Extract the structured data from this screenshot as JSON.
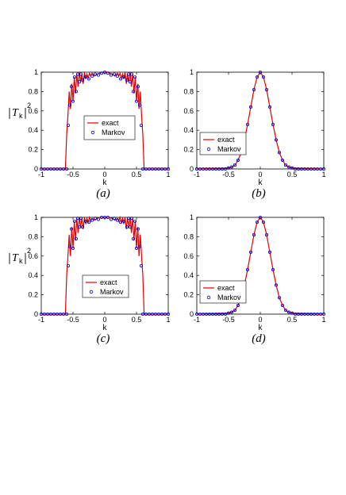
{
  "figure": {
    "captions": [
      "(a)",
      "(b)",
      "(c)",
      "(d)"
    ],
    "colors": {
      "exact": "#e00000",
      "markov": "#0000cc",
      "axis": "#000000"
    }
  },
  "chart_data": [
    {
      "type": "line",
      "panel": "(a)",
      "xlabel": "k",
      "ylabel": "|T_k|^2",
      "xlim": [
        -1,
        1
      ],
      "ylim": [
        0,
        1
      ],
      "xticks": [
        "-1",
        "-0.5",
        "0",
        "0.5",
        "1"
      ],
      "yticks": [
        "0",
        "0.2",
        "0.4",
        "0.6",
        "0.8",
        "1"
      ],
      "legend": {
        "position": "center",
        "entries": [
          "exact",
          "Markov"
        ]
      },
      "series": [
        {
          "name": "exact",
          "style": "line",
          "x": [
            -1,
            -0.62,
            -0.6,
            -0.58,
            -0.56,
            -0.54,
            -0.52,
            -0.5,
            -0.48,
            -0.46,
            -0.44,
            -0.42,
            -0.4,
            -0.38,
            -0.36,
            -0.34,
            -0.32,
            -0.3,
            -0.28,
            -0.26,
            -0.24,
            -0.22,
            -0.2,
            -0.16,
            -0.12,
            -0.08,
            -0.04,
            0,
            0.04,
            0.08,
            0.12,
            0.16,
            0.2,
            0.22,
            0.24,
            0.26,
            0.28,
            0.3,
            0.32,
            0.34,
            0.36,
            0.38,
            0.4,
            0.42,
            0.44,
            0.46,
            0.48,
            0.5,
            0.52,
            0.54,
            0.56,
            0.58,
            0.6,
            0.62,
            1
          ],
          "y": [
            0,
            0,
            0.35,
            0.55,
            0.8,
            0.62,
            0.88,
            0.7,
            0.95,
            0.78,
            0.98,
            0.85,
            1.0,
            0.9,
            0.98,
            0.88,
            1.0,
            0.93,
            0.98,
            0.94,
            0.99,
            0.96,
            0.99,
            0.96,
            0.98,
            0.99,
            1.0,
            1.0,
            1.0,
            0.99,
            0.98,
            0.96,
            0.99,
            0.96,
            0.99,
            0.94,
            0.98,
            0.93,
            1.0,
            0.88,
            0.98,
            0.9,
            1.0,
            0.85,
            0.98,
            0.78,
            0.95,
            0.7,
            0.88,
            0.62,
            0.8,
            0.55,
            0.35,
            0,
            0
          ]
        },
        {
          "name": "Markov",
          "style": "markers",
          "x": [
            -1,
            -0.95,
            -0.9,
            -0.85,
            -0.8,
            -0.75,
            -0.7,
            -0.65,
            -0.6,
            -0.575,
            -0.55,
            -0.525,
            -0.5,
            -0.475,
            -0.45,
            -0.425,
            -0.4,
            -0.375,
            -0.35,
            -0.3,
            -0.25,
            -0.2,
            -0.15,
            -0.1,
            -0.05,
            0,
            0.05,
            0.1,
            0.15,
            0.2,
            0.25,
            0.3,
            0.35,
            0.375,
            0.4,
            0.425,
            0.45,
            0.475,
            0.5,
            0.525,
            0.55,
            0.575,
            0.6,
            0.65,
            0.7,
            0.75,
            0.8,
            0.85,
            0.9,
            0.95,
            1
          ],
          "y": [
            0,
            0,
            0,
            0,
            0,
            0,
            0,
            0,
            0,
            0.45,
            0.66,
            0.85,
            0.7,
            0.95,
            0.8,
            0.98,
            0.9,
            0.98,
            0.92,
            0.95,
            0.93,
            0.96,
            0.98,
            0.97,
            0.99,
            1.0,
            0.99,
            0.97,
            0.98,
            0.96,
            0.93,
            0.95,
            0.92,
            0.98,
            0.9,
            0.98,
            0.8,
            0.95,
            0.7,
            0.85,
            0.66,
            0.45,
            0,
            0,
            0,
            0,
            0,
            0,
            0,
            0,
            0
          ]
        }
      ]
    },
    {
      "type": "line",
      "panel": "(b)",
      "xlabel": "k",
      "ylabel": "",
      "xlim": [
        -1,
        1
      ],
      "ylim": [
        0,
        1
      ],
      "xticks": [
        "-1",
        "-0.5",
        "0",
        "0.5",
        "1"
      ],
      "yticks": [
        "0",
        "0.2",
        "0.4",
        "0.6",
        "0.8",
        "1"
      ],
      "legend": {
        "position": "bottom-left",
        "entries": [
          "exact",
          "Markov"
        ]
      },
      "gaussian_width": 0.16,
      "series": [
        {
          "name": "exact",
          "style": "line",
          "x": [
            -1,
            -0.5,
            -0.45,
            -0.4,
            -0.35,
            -0.3,
            -0.25,
            -0.2,
            -0.15,
            -0.1,
            -0.05,
            0,
            0.05,
            0.1,
            0.15,
            0.2,
            0.25,
            0.3,
            0.35,
            0.4,
            0.45,
            0.5,
            1
          ],
          "y": [
            0,
            0.01,
            0.02,
            0.04,
            0.09,
            0.17,
            0.3,
            0.46,
            0.64,
            0.82,
            0.95,
            1.0,
            0.95,
            0.82,
            0.64,
            0.46,
            0.3,
            0.17,
            0.09,
            0.04,
            0.02,
            0.01,
            0
          ]
        },
        {
          "name": "Markov",
          "style": "markers",
          "x": [
            -1,
            -0.95,
            -0.9,
            -0.85,
            -0.8,
            -0.75,
            -0.7,
            -0.65,
            -0.6,
            -0.55,
            -0.5,
            -0.45,
            -0.4,
            -0.35,
            -0.3,
            -0.25,
            -0.2,
            -0.15,
            -0.1,
            -0.05,
            0,
            0.05,
            0.1,
            0.15,
            0.2,
            0.25,
            0.3,
            0.35,
            0.4,
            0.45,
            0.5,
            0.55,
            0.6,
            0.65,
            0.7,
            0.75,
            0.8,
            0.85,
            0.9,
            0.95,
            1
          ],
          "y": [
            0,
            0,
            0,
            0,
            0,
            0,
            0,
            0,
            0,
            0,
            0.01,
            0.02,
            0.04,
            0.09,
            0.17,
            0.3,
            0.46,
            0.64,
            0.82,
            0.95,
            1.0,
            0.95,
            0.82,
            0.64,
            0.46,
            0.3,
            0.17,
            0.09,
            0.04,
            0.02,
            0.01,
            0,
            0,
            0,
            0,
            0,
            0,
            0,
            0,
            0,
            0
          ]
        }
      ]
    },
    {
      "type": "line",
      "panel": "(c)",
      "xlabel": "k",
      "ylabel": "|T_k|^2",
      "xlim": [
        -1,
        1
      ],
      "ylim": [
        0,
        1
      ],
      "xticks": [
        "-1",
        "-0.5",
        "0",
        "0.5",
        "1"
      ],
      "yticks": [
        "0",
        "0.2",
        "0.4",
        "0.6",
        "0.8",
        "1"
      ],
      "legend": {
        "position": "bottom-center",
        "entries": [
          "exact",
          "Markov"
        ]
      },
      "series": [
        {
          "name": "exact",
          "style": "line",
          "x": [
            -1,
            -0.62,
            -0.6,
            -0.58,
            -0.56,
            -0.54,
            -0.52,
            -0.5,
            -0.48,
            -0.46,
            -0.44,
            -0.42,
            -0.4,
            -0.38,
            -0.36,
            -0.34,
            -0.32,
            -0.3,
            -0.28,
            -0.26,
            -0.24,
            -0.22,
            -0.2,
            -0.16,
            -0.12,
            -0.08,
            -0.04,
            0,
            0.04,
            0.08,
            0.12,
            0.16,
            0.2,
            0.22,
            0.24,
            0.26,
            0.28,
            0.3,
            0.32,
            0.34,
            0.36,
            0.38,
            0.4,
            0.42,
            0.44,
            0.46,
            0.48,
            0.5,
            0.52,
            0.54,
            0.56,
            0.58,
            0.6,
            0.62,
            1
          ],
          "y": [
            0,
            0,
            0.4,
            0.6,
            0.82,
            0.6,
            0.9,
            0.68,
            0.96,
            0.76,
            0.99,
            0.84,
            1.0,
            0.9,
            0.99,
            0.88,
            1.0,
            0.93,
            0.99,
            0.95,
            1.0,
            0.96,
            0.99,
            0.97,
            0.99,
            1.0,
            1.0,
            1.0,
            1.0,
            1.0,
            0.99,
            0.97,
            0.99,
            0.96,
            1.0,
            0.95,
            0.99,
            0.93,
            1.0,
            0.88,
            0.99,
            0.9,
            1.0,
            0.84,
            0.99,
            0.76,
            0.96,
            0.68,
            0.9,
            0.6,
            0.82,
            0.6,
            0.4,
            0,
            0
          ]
        },
        {
          "name": "Markov",
          "style": "markers",
          "x": [
            -1,
            -0.95,
            -0.9,
            -0.85,
            -0.8,
            -0.75,
            -0.7,
            -0.65,
            -0.6,
            -0.575,
            -0.55,
            -0.525,
            -0.5,
            -0.475,
            -0.45,
            -0.425,
            -0.4,
            -0.375,
            -0.35,
            -0.3,
            -0.25,
            -0.2,
            -0.15,
            -0.1,
            -0.05,
            0,
            0.05,
            0.1,
            0.15,
            0.2,
            0.25,
            0.3,
            0.35,
            0.375,
            0.4,
            0.425,
            0.45,
            0.475,
            0.5,
            0.525,
            0.55,
            0.575,
            0.6,
            0.65,
            0.7,
            0.75,
            0.8,
            0.85,
            0.9,
            0.95,
            1
          ],
          "y": [
            0,
            0,
            0,
            0,
            0,
            0,
            0,
            0,
            0,
            0.5,
            0.7,
            0.88,
            0.68,
            0.96,
            0.78,
            0.99,
            0.9,
            0.99,
            0.9,
            0.96,
            0.95,
            0.97,
            0.99,
            0.98,
            1.0,
            1.0,
            1.0,
            0.98,
            0.99,
            0.97,
            0.95,
            0.96,
            0.9,
            0.99,
            0.9,
            0.99,
            0.78,
            0.96,
            0.68,
            0.88,
            0.7,
            0.5,
            0,
            0,
            0,
            0,
            0,
            0,
            0,
            0,
            0
          ]
        }
      ]
    },
    {
      "type": "line",
      "panel": "(d)",
      "xlabel": "k",
      "ylabel": "",
      "xlim": [
        -1,
        1
      ],
      "ylim": [
        0,
        1
      ],
      "xticks": [
        "-1",
        "-0.5",
        "0",
        "0.5",
        "1"
      ],
      "yticks": [
        "0",
        "0.2",
        "0.4",
        "0.6",
        "0.8",
        "1"
      ],
      "legend": {
        "position": "bottom-left",
        "entries": [
          "exact",
          "Markov"
        ]
      },
      "series": [
        {
          "name": "exact",
          "style": "line",
          "x": [
            -1,
            -0.5,
            -0.45,
            -0.4,
            -0.35,
            -0.3,
            -0.25,
            -0.2,
            -0.15,
            -0.1,
            -0.05,
            0,
            0.05,
            0.1,
            0.15,
            0.2,
            0.25,
            0.3,
            0.35,
            0.4,
            0.45,
            0.5,
            1
          ],
          "y": [
            0,
            0.01,
            0.02,
            0.04,
            0.09,
            0.17,
            0.3,
            0.46,
            0.64,
            0.82,
            0.95,
            1.0,
            0.95,
            0.82,
            0.64,
            0.46,
            0.3,
            0.17,
            0.09,
            0.04,
            0.02,
            0.01,
            0
          ]
        },
        {
          "name": "Markov",
          "style": "markers",
          "x": [
            -1,
            -0.95,
            -0.9,
            -0.85,
            -0.8,
            -0.75,
            -0.7,
            -0.65,
            -0.6,
            -0.55,
            -0.5,
            -0.45,
            -0.4,
            -0.35,
            -0.3,
            -0.25,
            -0.2,
            -0.15,
            -0.1,
            -0.05,
            0,
            0.05,
            0.1,
            0.15,
            0.2,
            0.25,
            0.3,
            0.35,
            0.4,
            0.45,
            0.5,
            0.55,
            0.6,
            0.65,
            0.7,
            0.75,
            0.8,
            0.85,
            0.9,
            0.95,
            1
          ],
          "y": [
            0,
            0,
            0,
            0,
            0,
            0,
            0,
            0,
            0,
            0,
            0.01,
            0.02,
            0.04,
            0.09,
            0.17,
            0.3,
            0.46,
            0.64,
            0.82,
            0.95,
            1.0,
            0.95,
            0.82,
            0.64,
            0.46,
            0.3,
            0.17,
            0.09,
            0.04,
            0.02,
            0.01,
            0,
            0,
            0,
            0,
            0,
            0,
            0,
            0,
            0,
            0
          ]
        }
      ]
    }
  ]
}
